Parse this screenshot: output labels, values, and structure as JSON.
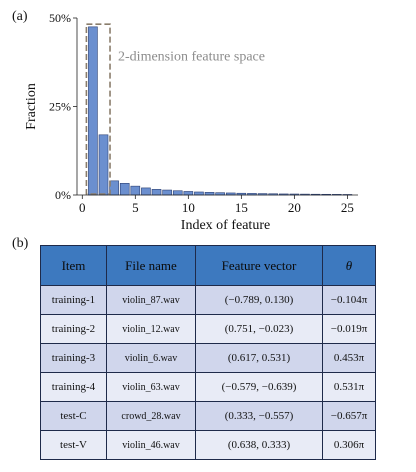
{
  "panel_a_label": "(a)",
  "panel_b_label": "(b)",
  "chart_data": {
    "type": "bar",
    "x": [
      1,
      2,
      3,
      4,
      5,
      6,
      7,
      8,
      9,
      10,
      11,
      12,
      13,
      14,
      15,
      16,
      17,
      18,
      19,
      20,
      21,
      22,
      23,
      24,
      25
    ],
    "values": [
      47.5,
      17.0,
      4.0,
      3.3,
      2.5,
      2.0,
      1.6,
      1.4,
      1.2,
      1.0,
      0.85,
      0.75,
      0.65,
      0.58,
      0.5,
      0.45,
      0.4,
      0.35,
      0.3,
      0.28,
      0.25,
      0.22,
      0.2,
      0.18,
      0.15
    ],
    "xlabel": "Index of feature",
    "ylabel": "Fraction",
    "xticks": [
      0,
      5,
      10,
      15,
      20,
      25
    ],
    "xtick_labels": [
      "0",
      "5",
      "10",
      "15",
      "20",
      "25"
    ],
    "yticks": [
      0,
      25,
      50
    ],
    "ytick_labels": [
      "0%",
      "25%",
      "50%"
    ],
    "xlim": [
      -0.5,
      26
    ],
    "ylim": [
      0,
      50
    ],
    "annotation": "2-dimension feature space",
    "highlight_range": [
      1,
      2
    ],
    "bar_color": "#6b8fcf",
    "highlight_color": "#8a7d6b"
  },
  "table": {
    "headers": {
      "item": "Item",
      "file": "File name",
      "vector": "Feature vector",
      "theta": "θ"
    },
    "rows": [
      {
        "item": "training-1",
        "file": "violin_87.wav",
        "vector": "(−0.789, 0.130)",
        "theta": "−0.104π"
      },
      {
        "item": "training-2",
        "file": "violin_12.wav",
        "vector": "(0.751, −0.023)",
        "theta": "−0.019π"
      },
      {
        "item": "training-3",
        "file": "violin_6.wav",
        "vector": "(0.617, 0.531)",
        "theta": "0.453π"
      },
      {
        "item": "training-4",
        "file": "violin_63.wav",
        "vector": "(−0.579, −0.639)",
        "theta": "0.531π"
      },
      {
        "item": "test-C",
        "file": "crowd_28.wav",
        "vector": "(0.333, −0.557)",
        "theta": "−0.657π"
      },
      {
        "item": "test-V",
        "file": "violin_46.wav",
        "vector": "(0.638, 0.333)",
        "theta": "0.306π"
      }
    ]
  }
}
